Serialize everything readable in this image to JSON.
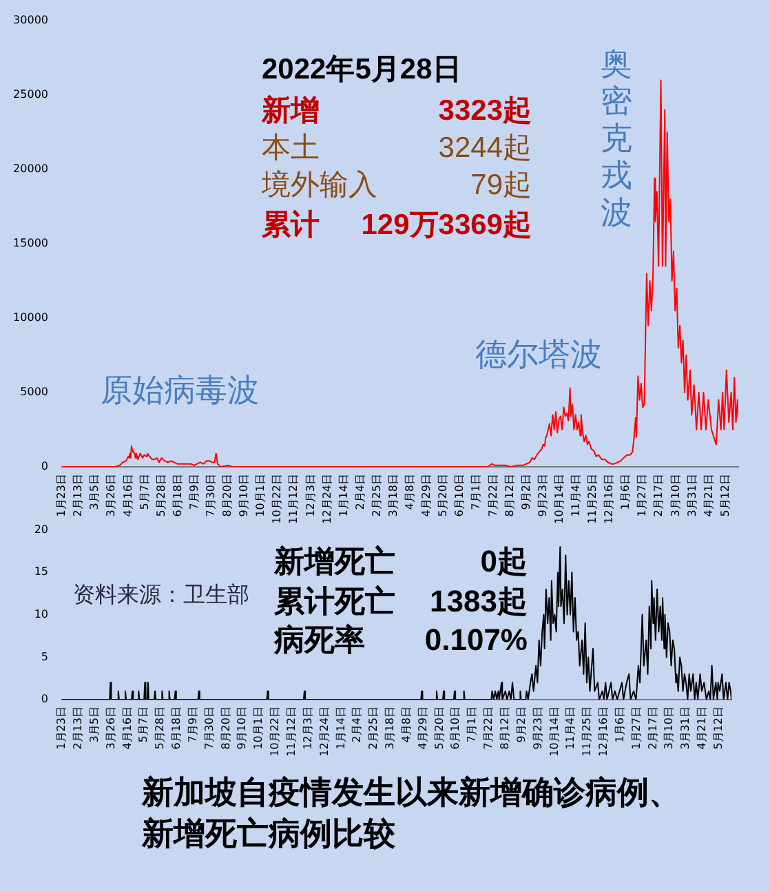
{
  "chart_data": [
    {
      "type": "line",
      "annotations": [
        "2022年5月28日",
        "新增 3323起",
        "本土 3244起",
        "境外输入 79起",
        "累计 129万3369起",
        "原始病毒波",
        "德尔塔波",
        "奥密克戎波"
      ],
      "x": [
        "2020-01-23",
        "2020-03-05",
        "2020-03-20",
        "2020-03-30",
        "2020-04-05",
        "2020-04-09",
        "2020-04-13",
        "2020-04-16",
        "2020-04-17",
        "2020-04-18",
        "2020-04-19",
        "2020-04-20",
        "2020-04-21",
        "2020-04-22",
        "2020-04-24",
        "2020-04-25",
        "2020-04-26",
        "2020-04-28",
        "2020-05-01",
        "2020-05-04",
        "2020-05-06",
        "2020-05-09",
        "2020-05-10",
        "2020-05-13",
        "2020-05-16",
        "2020-05-19",
        "2020-05-22",
        "2020-05-25",
        "2020-05-28",
        "2020-06-01",
        "2020-06-05",
        "2020-06-09",
        "2020-06-13",
        "2020-06-17",
        "2020-06-21",
        "2020-06-25",
        "2020-06-30",
        "2020-07-04",
        "2020-07-08",
        "2020-07-12",
        "2020-07-16",
        "2020-07-20",
        "2020-07-24",
        "2020-07-28",
        "2020-07-31",
        "2020-08-03",
        "2020-08-05",
        "2020-08-07",
        "2020-08-11",
        "2020-08-20",
        "2020-08-26",
        "2020-09-10",
        "2020-09-25",
        "2021-04-20",
        "2021-05-15",
        "2021-06-01",
        "2021-07-10",
        "2021-07-15",
        "2021-07-20",
        "2021-07-24",
        "2021-07-30",
        "2021-08-06",
        "2021-08-13",
        "2021-08-22",
        "2021-08-28",
        "2021-09-02",
        "2021-09-06",
        "2021-09-09",
        "2021-09-12",
        "2021-09-15",
        "2021-09-18",
        "2021-09-21",
        "2021-09-23",
        "2021-09-25",
        "2021-09-26",
        "2021-09-28",
        "2021-10-01",
        "2021-10-03",
        "2021-10-05",
        "2021-10-07",
        "2021-10-09",
        "2021-10-11",
        "2021-10-13",
        "2021-10-15",
        "2021-10-17",
        "2021-10-19",
        "2021-10-21",
        "2021-10-23",
        "2021-10-25",
        "2021-10-27",
        "2021-10-28",
        "2021-10-30",
        "2021-11-01",
        "2021-11-03",
        "2021-11-05",
        "2021-11-07",
        "2021-11-09",
        "2021-11-10",
        "2021-11-12",
        "2021-11-14",
        "2021-11-16",
        "2021-11-18",
        "2021-11-20",
        "2021-11-23",
        "2021-11-26",
        "2021-11-29",
        "2021-12-02",
        "2021-12-06",
        "2021-12-10",
        "2021-12-14",
        "2021-12-18",
        "2021-12-22",
        "2021-12-26",
        "2021-12-30",
        "2022-01-03",
        "2022-01-07",
        "2022-01-11",
        "2022-01-14",
        "2022-01-16",
        "2022-01-18",
        "2022-01-19",
        "2022-01-21",
        "2022-01-23",
        "2022-01-25",
        "2022-01-27",
        "2022-01-29",
        "2022-02-01",
        "2022-02-03",
        "2022-02-05",
        "2022-02-07",
        "2022-02-09",
        "2022-02-11",
        "2022-02-12",
        "2022-02-14",
        "2022-02-16",
        "2022-02-19",
        "2022-02-21",
        "2022-02-24",
        "2022-02-25",
        "2022-02-27",
        "2022-03-01",
        "2022-03-03",
        "2022-03-05",
        "2022-03-07",
        "2022-03-09",
        "2022-03-11",
        "2022-03-13",
        "2022-03-15",
        "2022-03-17",
        "2022-03-19",
        "2022-03-21",
        "2022-03-23",
        "2022-03-25",
        "2022-03-28",
        "2022-03-30",
        "2022-04-02",
        "2022-04-05",
        "2022-04-08",
        "2022-04-11",
        "2022-04-14",
        "2022-04-17",
        "2022-04-20",
        "2022-04-24",
        "2022-04-30",
        "2022-05-03",
        "2022-05-06",
        "2022-05-08",
        "2022-05-10",
        "2022-05-13",
        "2022-05-16",
        "2022-05-19",
        "2022-05-21",
        "2022-05-23",
        "2022-05-25",
        "2022-05-27",
        "2022-05-28"
      ],
      "values": [
        0,
        0,
        0,
        0,
        100,
        300,
        400,
        700,
        600,
        900,
        600,
        1400,
        1100,
        1000,
        900,
        600,
        900,
        500,
        900,
        600,
        800,
        700,
        900,
        700,
        500,
        500,
        600,
        300,
        600,
        400,
        300,
        400,
        300,
        200,
        200,
        200,
        200,
        200,
        100,
        200,
        300,
        200,
        400,
        400,
        300,
        300,
        900,
        200,
        0,
        100,
        0,
        0,
        0,
        0,
        0,
        0,
        0,
        0,
        200,
        100,
        100,
        100,
        0,
        100,
        100,
        200,
        300,
        600,
        500,
        800,
        1000,
        1200,
        1500,
        1400,
        1900,
        2200,
        2900,
        2100,
        3500,
        2500,
        3700,
        2300,
        3200,
        3400,
        2500,
        4000,
        3400,
        3600,
        3100,
        5300,
        3400,
        4200,
        2500,
        3500,
        2500,
        3000,
        2100,
        3500,
        2300,
        1700,
        2100,
        1500,
        1700,
        1200,
        1100,
        700,
        800,
        500,
        500,
        300,
        200,
        200,
        300,
        400,
        600,
        800,
        800,
        1000,
        1900,
        3300,
        2000,
        6100,
        4500,
        5600,
        4000,
        4200,
        13000,
        9500,
        12500,
        10500,
        12800,
        19400,
        16500,
        18500,
        13500,
        26000,
        13500,
        24000,
        13500,
        22500,
        16500,
        18000,
        12500,
        14500,
        10500,
        12000,
        8000,
        9500,
        7000,
        8500,
        5000,
        7500,
        4500,
        6500,
        3500,
        5500,
        2500,
        5000,
        2500,
        5000,
        2500,
        4500,
        2500,
        1500,
        4500,
        2500,
        5000,
        2500,
        6500,
        3000,
        5000,
        2500,
        6000,
        3000,
        4500,
        3323
      ],
      "color": "#ff0000",
      "xlim": [
        "2020-01-23",
        "2022-05-28"
      ],
      "xticks": [
        {
          "value": "2020-01-23",
          "label": "1月23日"
        },
        {
          "value": "2020-02-13",
          "label": "2月13日"
        },
        {
          "value": "2020-03-05",
          "label": "3月5日"
        },
        {
          "value": "2020-03-26",
          "label": "3月26日"
        },
        {
          "value": "2020-04-16",
          "label": "4月16日"
        },
        {
          "value": "2020-05-07",
          "label": "5月7日"
        },
        {
          "value": "2020-05-28",
          "label": "5月28日"
        },
        {
          "value": "2020-06-18",
          "label": "6月18日"
        },
        {
          "value": "2020-07-09",
          "label": "7月9日"
        },
        {
          "value": "2020-07-30",
          "label": "7月30日"
        },
        {
          "value": "2020-08-20",
          "label": "8月20日"
        },
        {
          "value": "2020-09-10",
          "label": "9月10日"
        },
        {
          "value": "2020-10-01",
          "label": "10月1日"
        },
        {
          "value": "2020-10-22",
          "label": "10月22日"
        },
        {
          "value": "2020-11-12",
          "label": "11月12日"
        },
        {
          "value": "2020-12-03",
          "label": "12月3日"
        },
        {
          "value": "2020-12-24",
          "label": "12月24日"
        },
        {
          "value": "2021-01-14",
          "label": "1月14日"
        },
        {
          "value": "2021-02-04",
          "label": "2月4日"
        },
        {
          "value": "2021-02-25",
          "label": "2月25日"
        },
        {
          "value": "2021-03-18",
          "label": "3月18日"
        },
        {
          "value": "2021-04-08",
          "label": "4月8日"
        },
        {
          "value": "2021-04-29",
          "label": "4月29日"
        },
        {
          "value": "2021-05-20",
          "label": "5月20日"
        },
        {
          "value": "2021-06-10",
          "label": "6月10日"
        },
        {
          "value": "2021-07-01",
          "label": "7月1日"
        },
        {
          "value": "2021-07-22",
          "label": "7月22日"
        },
        {
          "value": "2021-08-12",
          "label": "8月12日"
        },
        {
          "value": "2021-09-02",
          "label": "9月2日"
        },
        {
          "value": "2021-09-23",
          "label": "9月23日"
        },
        {
          "value": "2021-10-14",
          "label": "10月14日"
        },
        {
          "value": "2021-11-04",
          "label": "11月4日"
        },
        {
          "value": "2021-11-25",
          "label": "11月25日"
        },
        {
          "value": "2021-12-16",
          "label": "12月16日"
        },
        {
          "value": "2022-01-06",
          "label": "1月6日"
        },
        {
          "value": "2022-01-27",
          "label": "1月27日"
        },
        {
          "value": "2022-02-17",
          "label": "2月17日"
        },
        {
          "value": "2022-03-10",
          "label": "3月10日"
        },
        {
          "value": "2022-03-31",
          "label": "3月31日"
        },
        {
          "value": "2022-04-21",
          "label": "4月21日"
        },
        {
          "value": "2022-05-12",
          "label": "5月12日"
        }
      ],
      "ylim": [
        0,
        30000
      ],
      "yticks": [
        0,
        5000,
        10000,
        15000,
        20000,
        25000,
        30000
      ]
    },
    {
      "type": "line",
      "title": "新加坡自疫情发生以来新增确诊病例、新增死亡病例比较",
      "annotations": [
        "新增死亡 0起",
        "累计死亡 1383起",
        "病死率 0.107%",
        "资料来源：卫生部"
      ],
      "x": [
        "2020-01-23",
        "2020-03-24",
        "2020-03-25",
        "2020-03-26",
        "2020-04-03",
        "2020-04-04",
        "2020-04-05",
        "2020-04-12",
        "2020-04-13",
        "2020-04-14",
        "2020-04-21",
        "2020-04-22",
        "2020-04-23",
        "2020-04-29",
        "2020-04-30",
        "2020-05-01",
        "2020-05-07",
        "2020-05-08",
        "2020-05-09",
        "2020-05-11",
        "2020-05-12",
        "2020-05-13",
        "2020-05-20",
        "2020-05-21",
        "2020-05-22",
        "2020-05-29",
        "2020-05-30",
        "2020-05-31",
        "2020-06-07",
        "2020-06-08",
        "2020-06-09",
        "2020-06-15",
        "2020-06-16",
        "2020-06-17",
        "2020-07-15",
        "2020-07-16",
        "2020-07-17",
        "2020-10-11",
        "2020-10-12",
        "2020-10-13",
        "2020-11-27",
        "2020-11-28",
        "2020-11-29",
        "2021-04-26",
        "2021-04-27",
        "2021-04-28",
        "2021-05-15",
        "2021-05-16",
        "2021-05-17",
        "2021-05-24",
        "2021-05-25",
        "2021-05-26",
        "2021-06-07",
        "2021-06-08",
        "2021-06-09",
        "2021-06-19",
        "2021-06-20",
        "2021-06-21",
        "2021-07-25",
        "2021-07-26",
        "2021-07-28",
        "2021-07-30",
        "2021-08-01",
        "2021-08-03",
        "2021-08-04",
        "2021-08-07",
        "2021-08-08",
        "2021-08-12",
        "2021-08-14",
        "2021-08-17",
        "2021-08-19",
        "2021-08-21",
        "2021-08-23",
        "2021-08-30",
        "2021-08-31",
        "2021-09-01",
        "2021-09-07",
        "2021-09-08",
        "2021-09-10",
        "2021-09-13",
        "2021-09-15",
        "2021-09-17",
        "2021-09-20",
        "2021-09-22",
        "2021-09-24",
        "2021-09-26",
        "2021-09-28",
        "2021-09-30",
        "2021-10-01",
        "2021-10-03",
        "2021-10-05",
        "2021-10-07",
        "2021-10-09",
        "2021-10-10",
        "2021-10-12",
        "2021-10-14",
        "2021-10-16",
        "2021-10-18",
        "2021-10-19",
        "2021-10-21",
        "2021-10-22",
        "2021-10-24",
        "2021-10-26",
        "2021-10-28",
        "2021-10-30",
        "2021-11-01",
        "2021-11-03",
        "2021-11-05",
        "2021-11-07",
        "2021-11-09",
        "2021-11-11",
        "2021-11-13",
        "2021-11-15",
        "2021-11-18",
        "2021-11-20",
        "2021-11-22",
        "2021-11-24",
        "2021-11-26",
        "2021-11-28",
        "2021-12-02",
        "2021-12-04",
        "2021-12-08",
        "2021-12-10",
        "2021-12-14",
        "2021-12-16",
        "2021-12-18",
        "2021-12-20",
        "2021-12-25",
        "2021-12-27",
        "2021-12-30",
        "2022-01-02",
        "2022-01-08",
        "2022-01-10",
        "2022-01-14",
        "2022-01-17",
        "2022-01-19",
        "2022-01-23",
        "2022-01-26",
        "2022-01-29",
        "2022-01-31",
        "2022-02-03",
        "2022-02-05",
        "2022-02-08",
        "2022-02-10",
        "2022-02-12",
        "2022-02-14",
        "2022-02-15",
        "2022-02-17",
        "2022-02-18",
        "2022-02-20",
        "2022-02-22",
        "2022-02-24",
        "2022-02-26",
        "2022-02-28",
        "2022-03-01",
        "2022-03-03",
        "2022-03-04",
        "2022-03-06",
        "2022-03-08",
        "2022-03-10",
        "2022-03-12",
        "2022-03-14",
        "2022-03-16",
        "2022-03-18",
        "2022-03-19",
        "2022-03-21",
        "2022-03-23",
        "2022-03-25",
        "2022-03-27",
        "2022-03-29",
        "2022-03-31",
        "2022-04-02",
        "2022-04-04",
        "2022-04-06",
        "2022-04-09",
        "2022-04-11",
        "2022-04-13",
        "2022-04-15",
        "2022-04-18",
        "2022-04-20",
        "2022-04-23",
        "2022-04-26",
        "2022-04-29",
        "2022-05-01",
        "2022-05-03",
        "2022-05-05",
        "2022-05-08",
        "2022-05-10",
        "2022-05-11",
        "2022-05-13",
        "2022-05-16",
        "2022-05-18",
        "2022-05-21",
        "2022-05-23",
        "2022-05-25",
        "2022-05-27",
        "2022-05-28"
      ],
      "values": [
        0,
        0,
        2,
        0,
        0,
        1,
        0,
        0,
        1,
        0,
        0,
        1,
        0,
        0,
        1,
        0,
        0,
        2,
        0,
        0,
        2,
        0,
        0,
        1,
        0,
        0,
        1,
        0,
        0,
        1,
        0,
        0,
        1,
        0,
        0,
        1,
        0,
        0,
        1,
        0,
        0,
        1,
        0,
        0,
        1,
        0,
        0,
        1,
        0,
        0,
        1,
        0,
        0,
        1,
        0,
        0,
        1,
        0,
        0,
        1,
        0,
        1,
        0,
        1,
        0,
        2,
        0,
        1,
        0,
        1,
        0,
        2,
        0,
        0,
        1,
        0,
        0,
        1,
        0,
        2,
        3,
        1,
        4,
        2,
        7,
        4,
        8,
        10,
        6,
        13,
        9,
        12,
        7,
        14,
        9,
        10,
        8,
        15,
        11,
        18,
        11,
        13,
        9,
        17,
        10,
        14,
        10,
        15,
        8,
        12,
        7,
        8,
        4,
        7,
        3,
        9,
        2,
        5,
        1,
        6,
        1,
        2,
        0,
        1,
        0,
        2,
        0,
        2,
        0,
        1,
        0,
        2,
        0,
        2,
        3,
        0,
        1,
        0,
        4,
        2,
        10,
        4,
        7,
        3,
        11,
        6,
        14,
        9,
        12,
        7,
        13,
        8,
        11,
        7,
        12,
        6,
        10,
        5,
        9,
        8,
        4,
        7,
        6,
        2,
        3,
        1,
        5,
        4,
        1,
        3,
        2,
        0,
        3,
        1,
        3,
        0,
        2,
        0,
        3,
        1,
        2,
        0,
        1,
        0,
        4,
        0,
        2,
        0,
        2,
        1,
        3,
        0,
        2,
        0,
        2,
        1,
        0
      ],
      "color": "#000000",
      "xlim": [
        "2020-01-23",
        "2022-05-28"
      ],
      "xticks": [
        {
          "value": "2020-01-23",
          "label": "1月23日"
        },
        {
          "value": "2020-02-13",
          "label": "2月13日"
        },
        {
          "value": "2020-03-05",
          "label": "3月5日"
        },
        {
          "value": "2020-03-26",
          "label": "3月26日"
        },
        {
          "value": "2020-04-16",
          "label": "4月16日"
        },
        {
          "value": "2020-05-07",
          "label": "5月7日"
        },
        {
          "value": "2020-05-28",
          "label": "5月28日"
        },
        {
          "value": "2020-06-18",
          "label": "6月18日"
        },
        {
          "value": "2020-07-09",
          "label": "7月9日"
        },
        {
          "value": "2020-07-30",
          "label": "7月30日"
        },
        {
          "value": "2020-08-20",
          "label": "8月20日"
        },
        {
          "value": "2020-09-10",
          "label": "9月10日"
        },
        {
          "value": "2020-10-01",
          "label": "10月1日"
        },
        {
          "value": "2020-10-22",
          "label": "10月22日"
        },
        {
          "value": "2020-11-12",
          "label": "11月12日"
        },
        {
          "value": "2020-12-03",
          "label": "12月3日"
        },
        {
          "value": "2020-12-24",
          "label": "12月24日"
        },
        {
          "value": "2021-01-14",
          "label": "1月14日"
        },
        {
          "value": "2021-02-04",
          "label": "2月4日"
        },
        {
          "value": "2021-02-25",
          "label": "2月25日"
        },
        {
          "value": "2021-03-18",
          "label": "3月18日"
        },
        {
          "value": "2021-04-08",
          "label": "4月8日"
        },
        {
          "value": "2021-04-29",
          "label": "4月29日"
        },
        {
          "value": "2021-05-20",
          "label": "5月20日"
        },
        {
          "value": "2021-06-10",
          "label": "6月10日"
        },
        {
          "value": "2021-07-01",
          "label": "7月1日"
        },
        {
          "value": "2021-07-22",
          "label": "7月22日"
        },
        {
          "value": "2021-08-12",
          "label": "8月12日"
        },
        {
          "value": "2021-09-02",
          "label": "9月2日"
        },
        {
          "value": "2021-09-23",
          "label": "9月23日"
        },
        {
          "value": "2021-10-14",
          "label": "10月14日"
        },
        {
          "value": "2021-11-04",
          "label": "11月4日"
        },
        {
          "value": "2021-11-25",
          "label": "11月25日"
        },
        {
          "value": "2021-12-16",
          "label": "12月16日"
        },
        {
          "value": "2022-01-06",
          "label": "1月6日"
        },
        {
          "value": "2022-01-27",
          "label": "1月27日"
        },
        {
          "value": "2022-02-17",
          "label": "2月17日"
        },
        {
          "value": "2022-03-10",
          "label": "3月10日"
        },
        {
          "value": "2022-03-31",
          "label": "3月31日"
        },
        {
          "value": "2022-04-21",
          "label": "4月21日"
        },
        {
          "value": "2022-05-12",
          "label": "5月12日"
        }
      ],
      "ylim": [
        0,
        20
      ],
      "yticks": [
        0,
        5,
        10,
        15,
        20
      ]
    }
  ]
}
